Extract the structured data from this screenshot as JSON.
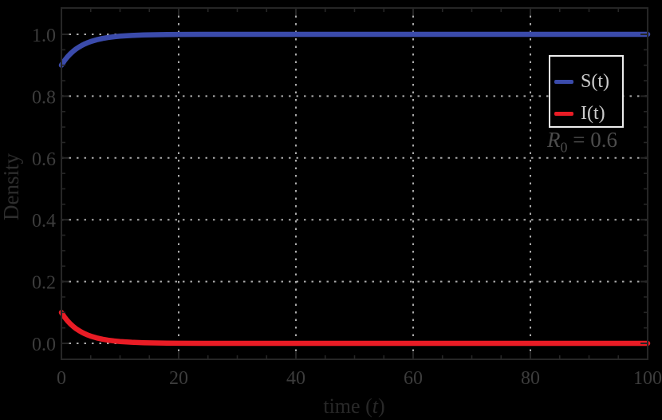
{
  "figure": {
    "background": "#000000",
    "frame_color": "#262626",
    "grid_color": "#aaaaaa",
    "tick_label_color": "#3c3c3c",
    "axis_label_color": "#2e2e2e",
    "legend": {
      "border_color": "#ededed",
      "background": "#000000",
      "text_color": "#cccccc"
    }
  },
  "chart_data": {
    "type": "line",
    "title": "",
    "xlabel": "time (t)",
    "xlabel_parts": {
      "pre": "time (",
      "var": "t",
      "post": ")"
    },
    "ylabel": "Density",
    "xlim": [
      0,
      100
    ],
    "ylim": [
      0,
      1.0
    ],
    "x_ticks": [
      0,
      20,
      40,
      60,
      80,
      100
    ],
    "x_tick_labels": [
      "0",
      "20",
      "40",
      "60",
      "80",
      "100"
    ],
    "y_ticks": [
      0,
      0.2,
      0.4,
      0.6,
      0.8,
      1.0
    ],
    "y_tick_labels": [
      "0.0",
      "0.2",
      "0.4",
      "0.6",
      "0.8",
      "1.0"
    ],
    "x_minor_step": 5,
    "y_minor_step": 0.05,
    "grid": true,
    "grid_style": "dotted",
    "legend_position": "upper right",
    "annotation": {
      "text": "R0 = 0.6",
      "var": "R",
      "sub": "0",
      "rest": " = 0.6"
    },
    "x": [
      0,
      0.5,
      1,
      1.5,
      2,
      2.5,
      3,
      3.5,
      4,
      4.5,
      5,
      6,
      7,
      8,
      9,
      10,
      12,
      14,
      16,
      18,
      20,
      25,
      30,
      40,
      50,
      60,
      70,
      80,
      90,
      100
    ],
    "series": [
      {
        "name": "S(t)",
        "color": "#3b4bab",
        "values": [
          0.9,
          0.9143,
          0.9263,
          0.9365,
          0.9452,
          0.9526,
          0.9589,
          0.9644,
          0.9691,
          0.9732,
          0.9767,
          0.9823,
          0.9866,
          0.9898,
          0.9923,
          0.9941,
          0.9966,
          0.998,
          0.9988,
          0.9993,
          0.9996,
          0.9999,
          1,
          1,
          1,
          1,
          1,
          1,
          1,
          1
        ]
      },
      {
        "name": "I(t)",
        "color": "#e91c25",
        "values": [
          0.1,
          0.0857,
          0.0737,
          0.0635,
          0.0548,
          0.0474,
          0.0411,
          0.0356,
          0.0309,
          0.0268,
          0.0233,
          0.0177,
          0.0134,
          0.0102,
          0.0077,
          0.0059,
          0.0034,
          0.002,
          0.0012,
          0.0007,
          0.0004,
          0.0001,
          0.0001,
          0,
          0,
          0,
          0,
          0,
          0,
          0
        ]
      }
    ]
  }
}
